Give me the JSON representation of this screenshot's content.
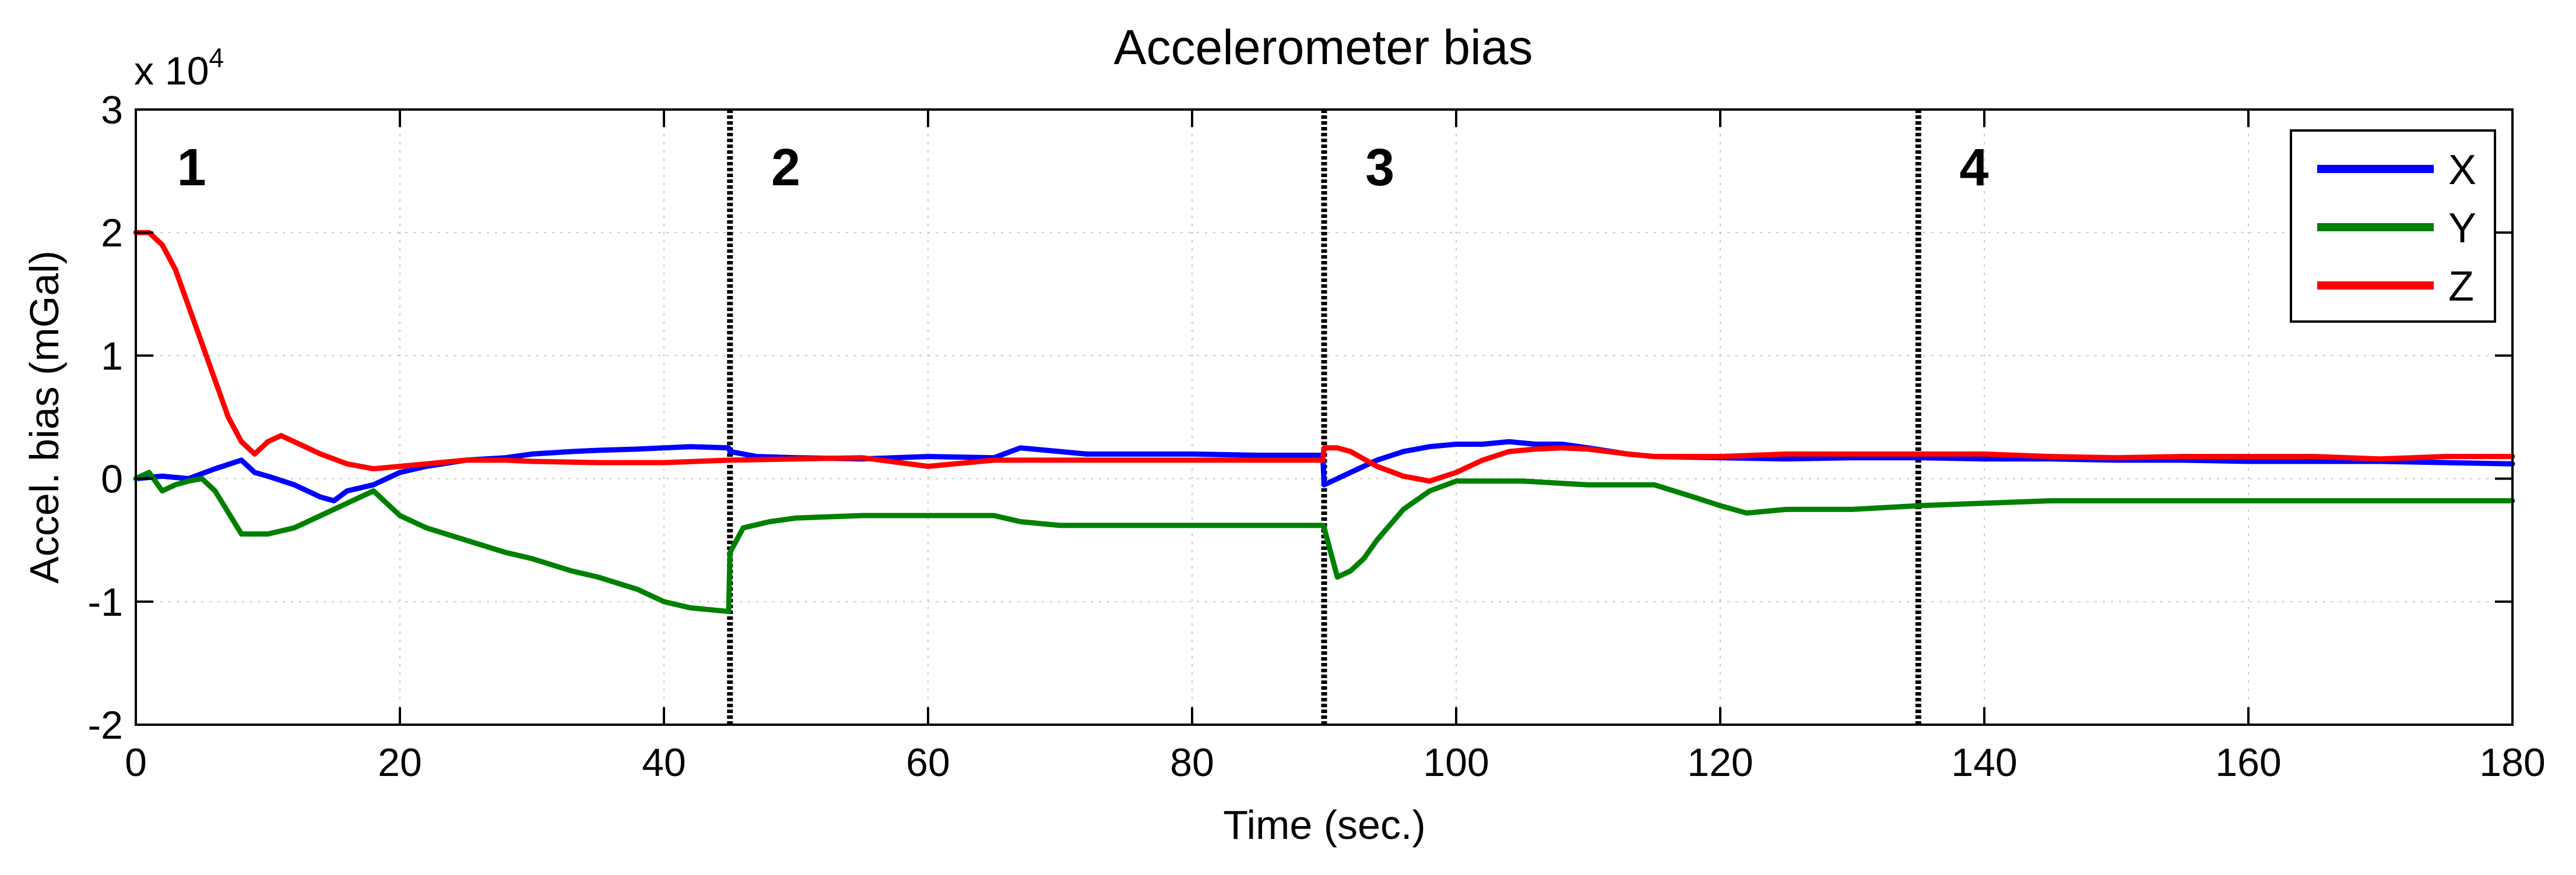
{
  "chart_data": {
    "type": "line",
    "title": "Accelerometer bias",
    "xlabel": "Time (sec.)",
    "ylabel": "Accel. bias (mGal)",
    "y_multiplier": {
      "base": "x 10",
      "exponent": "4"
    },
    "xlim": [
      0,
      180
    ],
    "ylim": [
      -2,
      3
    ],
    "x_ticks": [
      0,
      20,
      40,
      60,
      80,
      100,
      120,
      140,
      160,
      180
    ],
    "y_ticks": [
      -2,
      -1,
      0,
      1,
      2,
      3
    ],
    "x_tick_labels": [
      "0",
      "20",
      "40",
      "60",
      "80",
      "100",
      "120",
      "140",
      "160",
      "180"
    ],
    "y_tick_labels": [
      "-2",
      "-1",
      "0",
      "1",
      "2",
      "3"
    ],
    "grid": true,
    "legend_position": "top-right",
    "region_boundaries": [
      45,
      90,
      135
    ],
    "region_labels": [
      {
        "text": "1",
        "x": 4
      },
      {
        "text": "2",
        "x": 49
      },
      {
        "text": "3",
        "x": 94
      },
      {
        "text": "4",
        "x": 139
      }
    ],
    "series": [
      {
        "name": "X",
        "color": "#0000ff",
        "x": [
          0,
          2,
          4,
          6,
          8,
          9,
          10,
          12,
          14,
          15,
          16,
          18,
          20,
          22,
          25,
          28,
          30,
          33,
          35,
          38,
          40,
          42,
          44.9,
          45,
          47,
          50,
          55,
          60,
          65,
          67,
          70,
          72,
          75,
          80,
          85,
          89.9,
          90,
          91,
          92,
          94,
          96,
          98,
          100,
          102,
          104,
          106,
          108,
          110,
          113,
          115,
          120,
          125,
          130,
          135,
          140,
          145,
          150,
          155,
          160,
          165,
          170,
          175,
          180
        ],
        "values": [
          0.0,
          0.02,
          0.0,
          0.08,
          0.15,
          0.05,
          0.02,
          -0.05,
          -0.15,
          -0.18,
          -0.1,
          -0.05,
          0.05,
          0.1,
          0.15,
          0.17,
          0.2,
          0.22,
          0.23,
          0.24,
          0.25,
          0.26,
          0.25,
          0.22,
          0.18,
          0.17,
          0.16,
          0.18,
          0.17,
          0.25,
          0.22,
          0.2,
          0.2,
          0.2,
          0.19,
          0.19,
          -0.05,
          0.0,
          0.05,
          0.15,
          0.22,
          0.26,
          0.28,
          0.28,
          0.3,
          0.28,
          0.28,
          0.25,
          0.2,
          0.18,
          0.17,
          0.16,
          0.17,
          0.17,
          0.16,
          0.16,
          0.15,
          0.15,
          0.14,
          0.14,
          0.14,
          0.13,
          0.12
        ]
      },
      {
        "name": "Y",
        "color": "#008000",
        "x": [
          0,
          1,
          2,
          3,
          4,
          5,
          6,
          8,
          10,
          12,
          14,
          16,
          18,
          20,
          22,
          25,
          28,
          30,
          33,
          35,
          38,
          40,
          42,
          44.9,
          45,
          45.5,
          46,
          48,
          50,
          55,
          60,
          65,
          67,
          70,
          75,
          80,
          85,
          89.9,
          90,
          91,
          92,
          93,
          94,
          96,
          98,
          100,
          105,
          110,
          115,
          118,
          120,
          122,
          125,
          130,
          135,
          140,
          145,
          150,
          160,
          170,
          180
        ],
        "values": [
          0.0,
          0.05,
          -0.1,
          -0.05,
          -0.02,
          0.0,
          -0.1,
          -0.45,
          -0.45,
          -0.4,
          -0.3,
          -0.2,
          -0.1,
          -0.3,
          -0.4,
          -0.5,
          -0.6,
          -0.65,
          -0.75,
          -0.8,
          -0.9,
          -1.0,
          -1.05,
          -1.08,
          -0.6,
          -0.5,
          -0.4,
          -0.35,
          -0.32,
          -0.3,
          -0.3,
          -0.3,
          -0.35,
          -0.38,
          -0.38,
          -0.38,
          -0.38,
          -0.38,
          -0.4,
          -0.8,
          -0.75,
          -0.65,
          -0.5,
          -0.25,
          -0.1,
          -0.02,
          -0.02,
          -0.05,
          -0.05,
          -0.15,
          -0.22,
          -0.28,
          -0.25,
          -0.25,
          -0.22,
          -0.2,
          -0.18,
          -0.18,
          -0.18,
          -0.18,
          -0.18
        ]
      },
      {
        "name": "Z",
        "color": "#ff0000",
        "x": [
          0,
          1,
          2,
          3,
          4,
          5,
          6,
          7,
          8,
          9,
          10,
          11,
          12,
          14,
          16,
          18,
          20,
          22,
          25,
          28,
          30,
          35,
          40,
          44.9,
          45,
          50,
          55,
          60,
          65,
          70,
          75,
          80,
          85,
          89.9,
          90,
          91,
          92,
          94,
          96,
          98,
          100,
          102,
          104,
          106,
          108,
          110,
          113,
          115,
          120,
          125,
          130,
          135,
          140,
          145,
          150,
          155,
          160,
          165,
          170,
          175,
          180
        ],
        "values": [
          2.0,
          2.0,
          1.9,
          1.7,
          1.4,
          1.1,
          0.8,
          0.5,
          0.3,
          0.2,
          0.3,
          0.35,
          0.3,
          0.2,
          0.12,
          0.08,
          0.1,
          0.12,
          0.15,
          0.15,
          0.14,
          0.13,
          0.13,
          0.15,
          0.15,
          0.16,
          0.17,
          0.1,
          0.15,
          0.15,
          0.15,
          0.15,
          0.15,
          0.15,
          0.25,
          0.25,
          0.22,
          0.1,
          0.02,
          -0.02,
          0.05,
          0.15,
          0.22,
          0.24,
          0.25,
          0.24,
          0.2,
          0.18,
          0.18,
          0.2,
          0.2,
          0.2,
          0.2,
          0.18,
          0.17,
          0.18,
          0.18,
          0.18,
          0.16,
          0.18,
          0.18
        ]
      }
    ]
  }
}
